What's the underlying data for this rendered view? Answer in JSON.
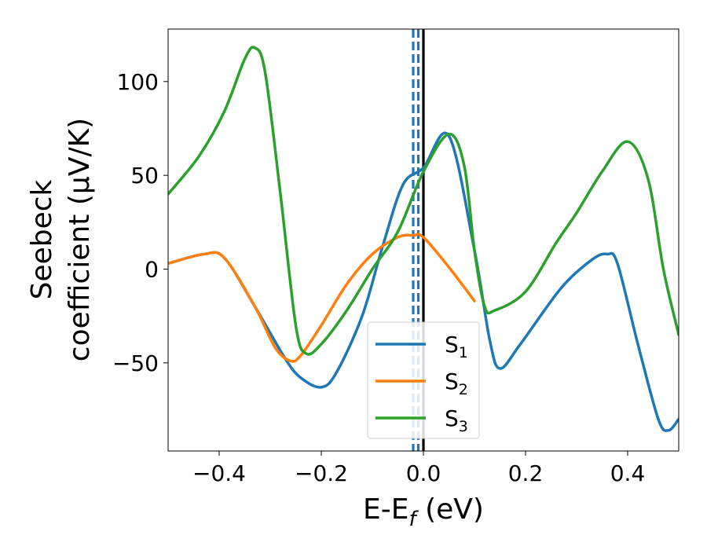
{
  "chart_data": {
    "type": "line",
    "xlabel": "E-E",
    "xlabel_subscript": "f",
    "xlabel_unit": "(eV)",
    "ylabel_line1": "Seebeck",
    "ylabel_line2": "coefficient  (μV/K)",
    "xlim": [
      -0.5,
      0.5
    ],
    "ylim": [
      -97,
      128
    ],
    "xticks": [
      -0.4,
      -0.2,
      0.0,
      0.2,
      0.4
    ],
    "xtick_labels": [
      "−0.4",
      "−0.2",
      "0.0",
      "0.2",
      "0.4"
    ],
    "yticks": [
      -50,
      0,
      50,
      100
    ],
    "ytick_labels": [
      "−50",
      "0",
      "50",
      "100"
    ],
    "grid": false,
    "legend_position": "lower-center",
    "vertical_lines": [
      {
        "x": -0.02,
        "style": "dashed",
        "color": "#1f77b4"
      },
      {
        "x": -0.01,
        "style": "dashed",
        "color": "#1f77b4"
      },
      {
        "x": 0.0,
        "style": "solid",
        "color": "#000000"
      }
    ],
    "series": [
      {
        "name": "S",
        "subscript": "1",
        "color": "#1f77b4",
        "x": [
          -0.5,
          -0.43,
          -0.39,
          -0.33,
          -0.27,
          -0.24,
          -0.2,
          -0.17,
          -0.12,
          -0.08,
          -0.04,
          0.0,
          0.05,
          0.1,
          0.13,
          0.15,
          0.19,
          0.27,
          0.33,
          0.36,
          0.38,
          0.42,
          0.46,
          0.48,
          0.5
        ],
        "y": [
          3,
          8,
          6,
          -20,
          -48,
          -58,
          -63,
          -55,
          -25,
          12,
          45,
          54,
          71,
          10,
          -38,
          -53,
          -40,
          -10,
          5,
          8,
          3,
          -40,
          -80,
          -86,
          -80
        ]
      },
      {
        "name": "S",
        "subscript": "2",
        "color": "#ff7f0e",
        "x": [
          -0.5,
          -0.43,
          -0.39,
          -0.33,
          -0.29,
          -0.26,
          -0.24,
          -0.2,
          -0.15,
          -0.1,
          -0.05,
          -0.02,
          0.0,
          0.05,
          0.1
        ],
        "y": [
          3,
          8,
          6,
          -20,
          -42,
          -49,
          -46,
          -30,
          -8,
          8,
          17,
          18,
          17,
          1,
          -17
        ]
      },
      {
        "name": "S",
        "subscript": "3",
        "color": "#2ca02c",
        "x": [
          -0.5,
          -0.44,
          -0.39,
          -0.35,
          -0.33,
          -0.31,
          -0.28,
          -0.25,
          -0.23,
          -0.2,
          -0.15,
          -0.1,
          -0.05,
          0.0,
          0.05,
          0.08,
          0.1,
          0.12,
          0.14,
          0.2,
          0.26,
          0.3,
          0.35,
          0.4,
          0.44,
          0.47,
          0.5
        ],
        "y": [
          40,
          60,
          84,
          112,
          118,
          105,
          40,
          -30,
          -45,
          -40,
          -22,
          0,
          20,
          52,
          72,
          55,
          10,
          -20,
          -22,
          -12,
          14,
          30,
          52,
          68,
          48,
          0,
          -35
        ]
      }
    ]
  }
}
